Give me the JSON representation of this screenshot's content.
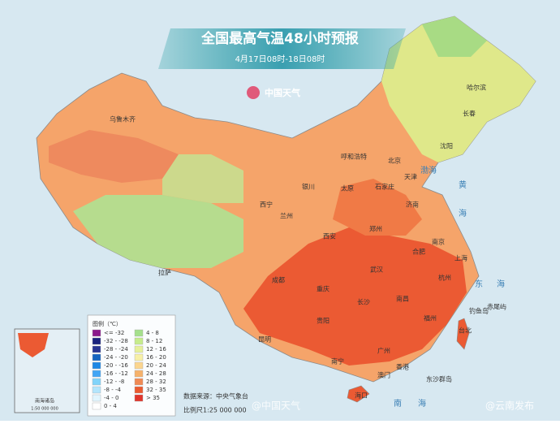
{
  "header": {
    "title": "全国最高气温48小时预报",
    "subtitle": "4月17日08时-18日08时",
    "logo": "中国天气"
  },
  "legend": {
    "title": "图例（℃）",
    "items": [
      {
        "label": "<= -32",
        "color": "#8b1a8b"
      },
      {
        "label": "-32 - -28",
        "color": "#1a237e"
      },
      {
        "label": "-28 - -24",
        "color": "#283593"
      },
      {
        "label": "-24 - -20",
        "color": "#1565c0"
      },
      {
        "label": "-20 - -16",
        "color": "#1e88e5"
      },
      {
        "label": "-16 - -12",
        "color": "#42a5f5"
      },
      {
        "label": "-12 - -8",
        "color": "#81d4fa"
      },
      {
        "label": "-8 - -4",
        "color": "#b3e5fc"
      },
      {
        "label": "-4 - 0",
        "color": "#e1f5fe"
      },
      {
        "label": "0 - 4",
        "color": "#ffffff"
      },
      {
        "label": "4 - 8",
        "color": "#a5e08c"
      },
      {
        "label": "8 - 12",
        "color": "#c6ec8c"
      },
      {
        "label": "12 - 16",
        "color": "#e6f09a"
      },
      {
        "label": "16 - 20",
        "color": "#f7f0a6"
      },
      {
        "label": "20 - 24",
        "color": "#fbd58e"
      },
      {
        "label": "24 - 28",
        "color": "#f6b26b"
      },
      {
        "label": "28 - 32",
        "color": "#f08a54"
      },
      {
        "label": "32 - 35",
        "color": "#ea5a2f"
      },
      {
        "label": "> 35",
        "color": "#e0352b"
      }
    ]
  },
  "cities": [
    "乌鲁木齐",
    "哈尔滨",
    "长春",
    "沈阳",
    "呼和浩特",
    "北京",
    "天津",
    "石家庄",
    "太原",
    "济南",
    "银川",
    "西宁",
    "兰州",
    "郑州",
    "西安",
    "合肥",
    "南京",
    "上海",
    "拉萨",
    "成都",
    "武汉",
    "杭州",
    "重庆",
    "长沙",
    "南昌",
    "福州",
    "贵阳",
    "台北",
    "昆明",
    "南宁",
    "广州",
    "香港",
    "澳门",
    "海口",
    "钓鱼岛",
    "赤尾屿",
    "东沙群岛"
  ],
  "seas": [
    "渤海",
    "黄",
    "海",
    "东",
    "海",
    "南",
    "海"
  ],
  "inset": {
    "title": "南海诸岛",
    "scale": "1:50 000 000"
  },
  "footer": {
    "source": "数据来源：中央气象台",
    "scale": "比例尺1:25 000 000"
  },
  "watermarks": [
    "@中国天气",
    "@云南发布"
  ]
}
